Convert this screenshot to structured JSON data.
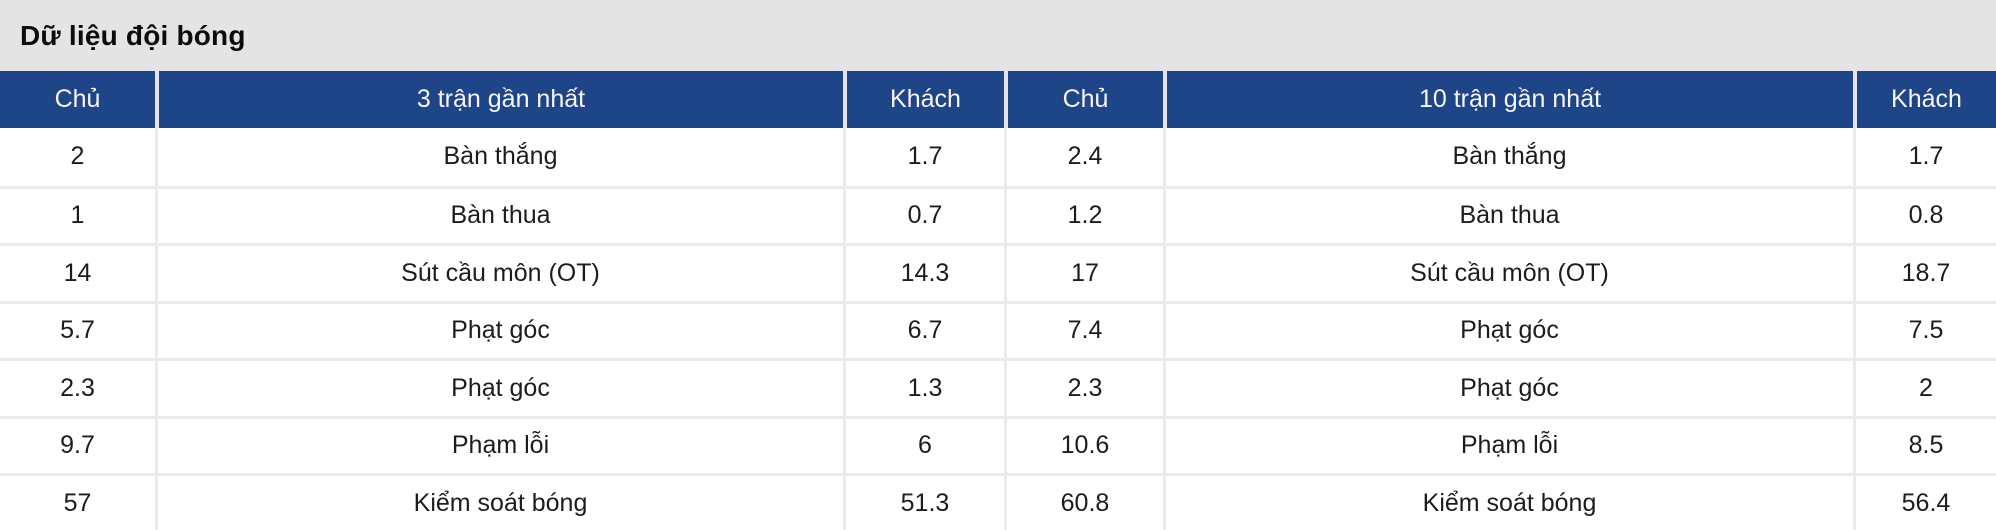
{
  "header": {
    "title": "Dữ liệu đội bóng"
  },
  "colors": {
    "header_bg": "#1e4588",
    "header_text": "#f7f7f7",
    "title_bar_bg": "#e5e4e4",
    "row_bg": "#ffffff",
    "divider": "#ebebeb",
    "body_text": "#1c1c1c"
  },
  "table": {
    "columns": [
      "Chủ",
      "3 trận gần nhất",
      "Khách",
      "Chủ",
      "10 trận gần nhất",
      "Khách"
    ],
    "rows": [
      {
        "home_3": "2",
        "stat_3": "Bàn thắng",
        "away_3": "1.7",
        "home_10": "2.4",
        "stat_10": "Bàn thắng",
        "away_10": "1.7"
      },
      {
        "home_3": "1",
        "stat_3": "Bàn thua",
        "away_3": "0.7",
        "home_10": "1.2",
        "stat_10": "Bàn thua",
        "away_10": "0.8"
      },
      {
        "home_3": "14",
        "stat_3": "Sút cầu môn (OT)",
        "away_3": "14.3",
        "home_10": "17",
        "stat_10": "Sút cầu môn (OT)",
        "away_10": "18.7"
      },
      {
        "home_3": "5.7",
        "stat_3": "Phạt góc",
        "away_3": "6.7",
        "home_10": "7.4",
        "stat_10": "Phạt góc",
        "away_10": "7.5"
      },
      {
        "home_3": "2.3",
        "stat_3": "Phạt góc",
        "away_3": "1.3",
        "home_10": "2.3",
        "stat_10": "Phạt góc",
        "away_10": "2"
      },
      {
        "home_3": "9.7",
        "stat_3": "Phạm lỗi",
        "away_3": "6",
        "home_10": "10.6",
        "stat_10": "Phạm lỗi",
        "away_10": "8.5"
      },
      {
        "home_3": "57",
        "stat_3": "Kiểm soát bóng",
        "away_3": "51.3",
        "home_10": "60.8",
        "stat_10": "Kiểm soát bóng",
        "away_10": "56.4"
      }
    ]
  }
}
